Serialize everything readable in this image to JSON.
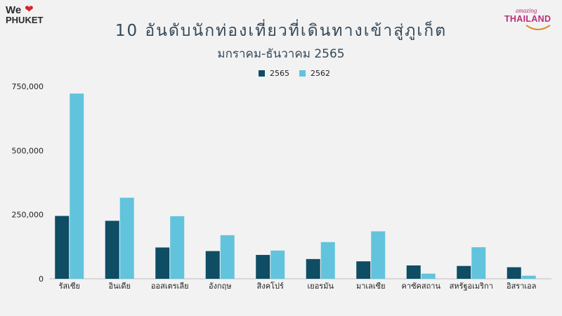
{
  "branding": {
    "left_logo_top": "We",
    "left_logo_bottom": "PHUKET",
    "right_logo_top": "amazing",
    "right_logo_bottom": "THAILAND"
  },
  "colors": {
    "series_2565": "#0e4d64",
    "series_2562": "#62c3dc",
    "background": "#f2f2f2",
    "title": "#34495a"
  },
  "chart_data": {
    "type": "bar",
    "title": "10 อันดับนักท่องเที่ยวที่เดินทางเข้าสู่ภูเก็ต",
    "subtitle": "มกราคม-ธันวาคม 2565",
    "categories": [
      "รัสเซีย",
      "อินเดีย",
      "ออสเตรเลีย",
      "อังกฤษ",
      "สิงคโปร์",
      "เยอรมัน",
      "มาเลเซีย",
      "คาซัคสถาน",
      "สหรัฐอเมริกา",
      "อิสราเอล"
    ],
    "series": [
      {
        "name": "2565",
        "values": [
          245000,
          226000,
          122000,
          108000,
          93000,
          77000,
          68000,
          52000,
          50000,
          45000
        ]
      },
      {
        "name": "2562",
        "values": [
          722000,
          316000,
          244000,
          170000,
          110000,
          143000,
          185000,
          20000,
          123000,
          12000
        ]
      }
    ],
    "yticks": [
      "0",
      "250,000",
      "500,000",
      "750,000"
    ],
    "ylim": [
      0,
      750000
    ],
    "legend": "top-center",
    "grid": false
  }
}
